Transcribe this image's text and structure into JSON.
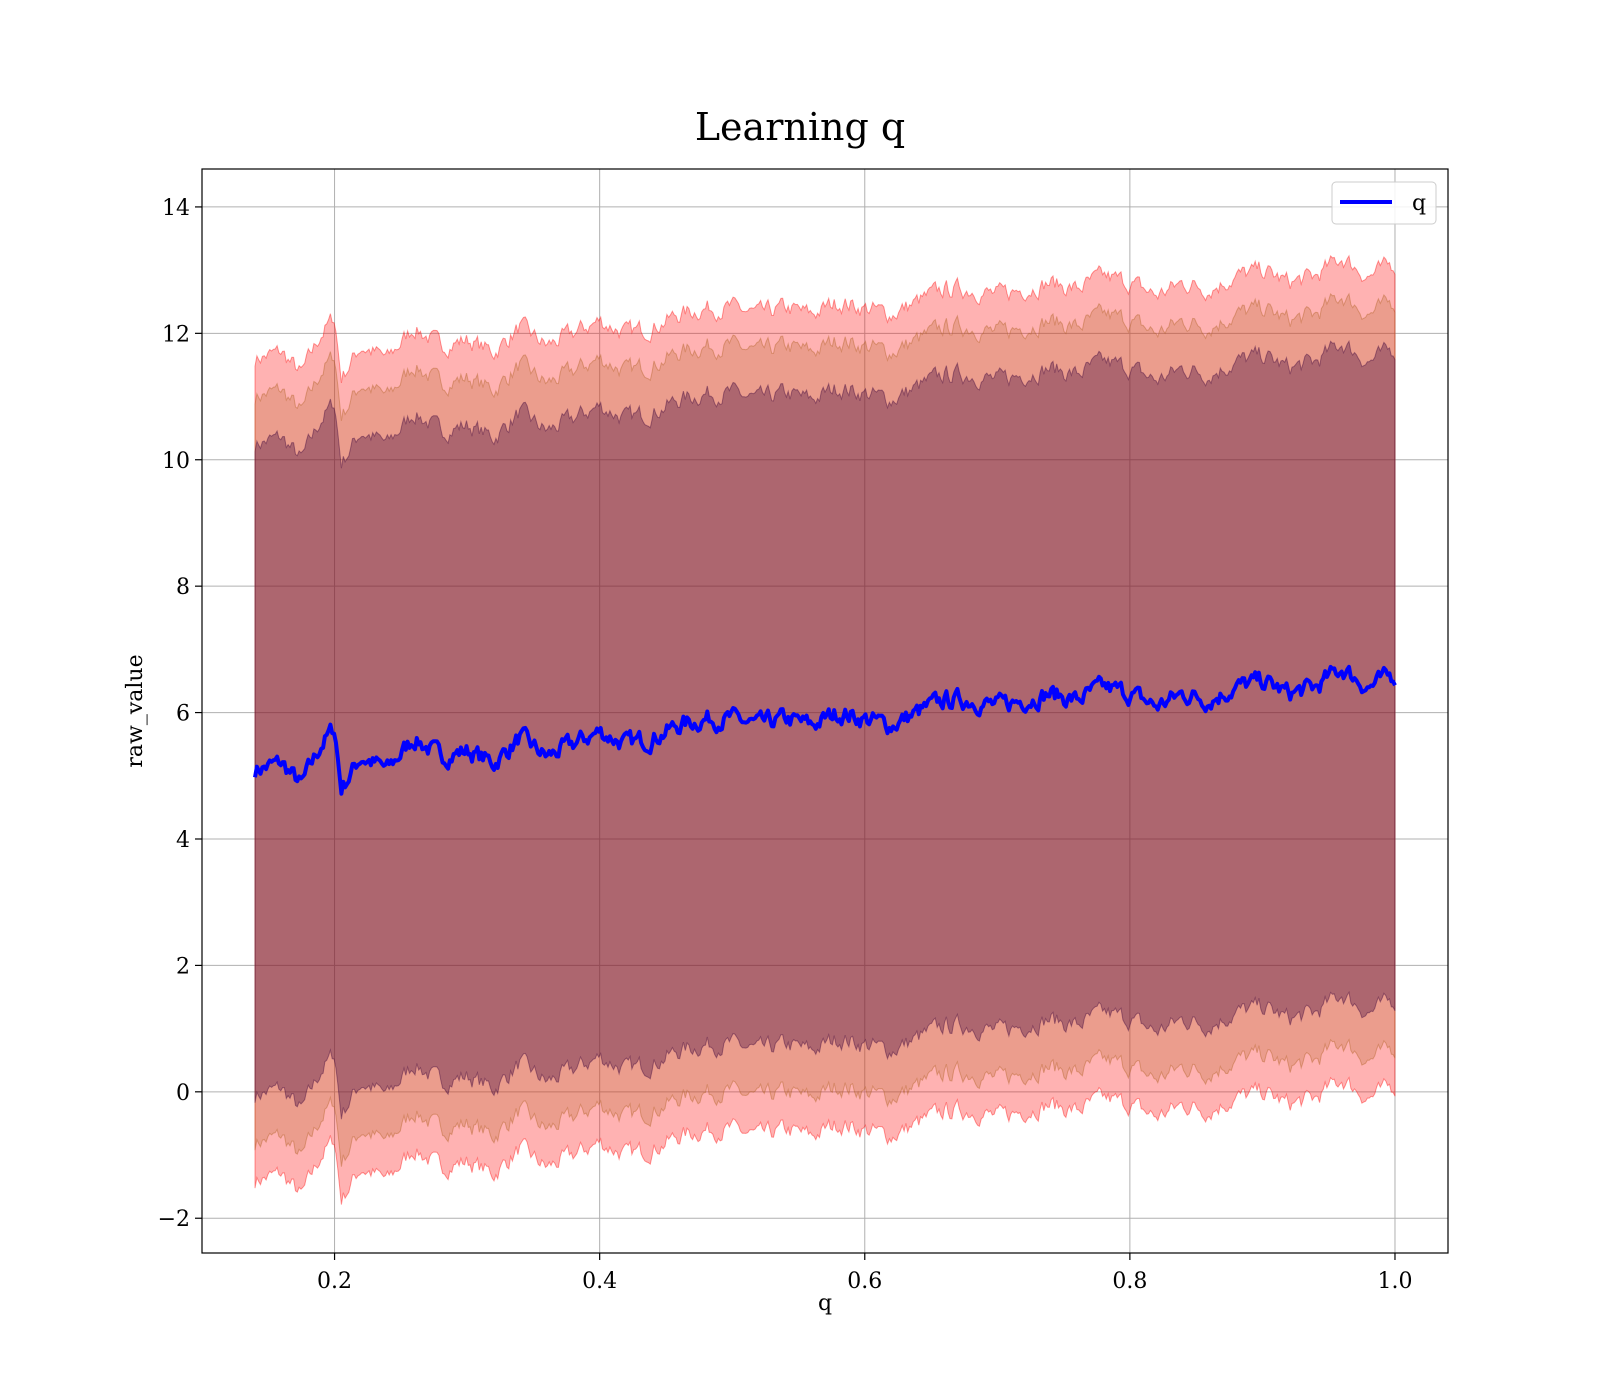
{
  "chart_data": {
    "type": "line",
    "title": "Learning q",
    "xlabel": "q",
    "ylabel": "raw_value",
    "xlim": [
      0.1,
      1.04
    ],
    "ylim": [
      -2.55,
      14.6
    ],
    "xticks": [
      0.2,
      0.4,
      0.6,
      0.8,
      1.0
    ],
    "xtick_labels": [
      "0.2",
      "0.4",
      "0.6",
      "0.8",
      "1.0"
    ],
    "yticks": [
      -2,
      0,
      2,
      4,
      6,
      8,
      10,
      12,
      14
    ],
    "ytick_labels": [
      "−2",
      "0",
      "2",
      "4",
      "6",
      "8",
      "10",
      "12",
      "14"
    ],
    "grid": true,
    "legend": {
      "placement": "top-right",
      "entries": [
        "q"
      ]
    },
    "series": [
      {
        "name": "q",
        "color": "#0000ff",
        "x": [
          0.14,
          0.16,
          0.175,
          0.19,
          0.2,
          0.205,
          0.22,
          0.24,
          0.26,
          0.28,
          0.3,
          0.32,
          0.34,
          0.36,
          0.38,
          0.4,
          0.42,
          0.44,
          0.46,
          0.48,
          0.5,
          0.52,
          0.54,
          0.56,
          0.58,
          0.6,
          0.62,
          0.64,
          0.66,
          0.68,
          0.7,
          0.72,
          0.74,
          0.76,
          0.78,
          0.8,
          0.82,
          0.84,
          0.86,
          0.88,
          0.9,
          0.92,
          0.94,
          0.96,
          0.98,
          1.0
        ],
        "y": [
          5.1,
          5.2,
          4.85,
          5.5,
          5.75,
          4.8,
          5.3,
          5.1,
          5.6,
          5.3,
          5.4,
          5.2,
          5.6,
          5.3,
          5.5,
          5.7,
          5.5,
          5.6,
          5.8,
          5.9,
          5.9,
          5.8,
          5.9,
          5.8,
          6.0,
          5.9,
          5.8,
          6.0,
          6.2,
          6.2,
          6.1,
          6.2,
          6.3,
          6.2,
          6.4,
          6.3,
          6.1,
          6.3,
          6.2,
          6.4,
          6.5,
          6.3,
          6.4,
          6.7,
          6.4,
          6.6
        ]
      }
    ],
    "bands": [
      {
        "color": "#ff0000",
        "opacity": 0.3,
        "half_width": 6.5
      },
      {
        "color": "#b06020",
        "opacity": 0.25,
        "half_width": 5.9
      },
      {
        "color": "#3a003a",
        "opacity": 0.35,
        "half_width": 5.15
      }
    ],
    "band_end_x": 1.0
  }
}
